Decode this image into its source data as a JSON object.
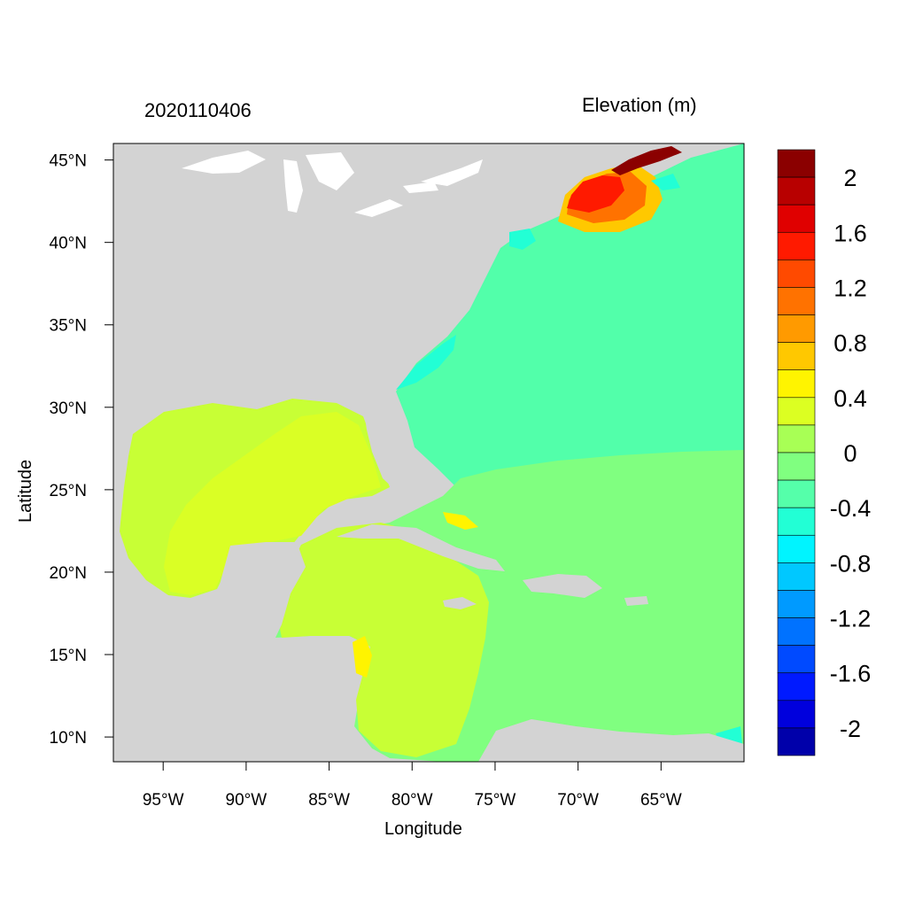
{
  "header": {
    "date_label": "2020110406",
    "variable_label": "Elevation (m)"
  },
  "axes": {
    "xlabel": "Longitude",
    "ylabel": "Latitude",
    "lon_range": [
      -98,
      -60
    ],
    "lat_range": [
      8.5,
      46
    ],
    "x_ticks": [
      "95°W",
      "90°W",
      "85°W",
      "80°W",
      "75°W",
      "70°W",
      "65°W"
    ],
    "x_tick_values": [
      -95,
      -90,
      -85,
      -80,
      -75,
      -70,
      -65
    ],
    "y_ticks": [
      "10°N",
      "15°N",
      "20°N",
      "25°N",
      "30°N",
      "35°N",
      "40°N",
      "45°N"
    ],
    "y_tick_values": [
      10,
      15,
      20,
      25,
      30,
      35,
      40,
      45
    ]
  },
  "colorbar": {
    "labels": [
      "2",
      "1.6",
      "1.2",
      "0.8",
      "0.4",
      "0",
      "-0.4",
      "-0.8",
      "-1.2",
      "-1.6",
      "-2"
    ],
    "colors": [
      "#8b0000",
      "#b80000",
      "#e00000",
      "#ff1a00",
      "#ff4a00",
      "#ff7200",
      "#ff9a00",
      "#ffc800",
      "#fff400",
      "#dcff22",
      "#a8ff55",
      "#80ff80",
      "#55ffaa",
      "#22ffd5",
      "#00f4ff",
      "#00c8ff",
      "#009aff",
      "#0072ff",
      "#004aff",
      "#001aff",
      "#0000dd",
      "#0000aa"
    ]
  },
  "map_colors": {
    "land": "#d3d3d3",
    "lakes": "#ffffff",
    "atlantic": "#52ffaa",
    "caribbean": "#80ff80",
    "gulf_outer": "#c8ff35",
    "gulf_inner": "#daff25",
    "coastal_cyan": "#22ffd5"
  }
}
